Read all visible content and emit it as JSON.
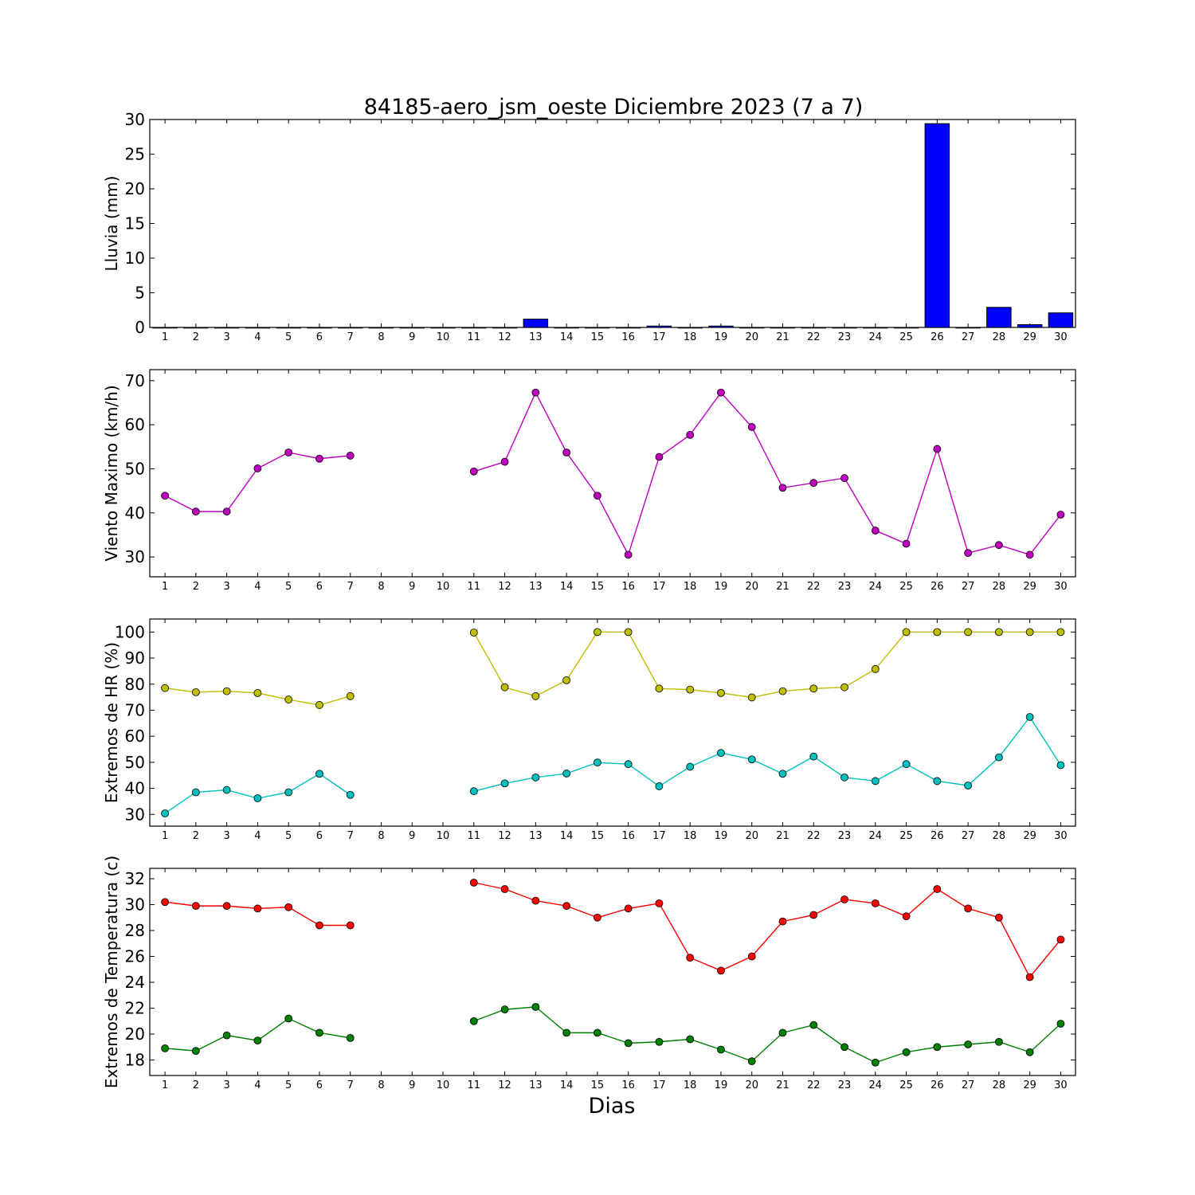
{
  "title": "84185-aero_jsm_oeste Diciembre 2023  (7 a 7)",
  "xlabel": "Dias",
  "colors": {
    "rain": "#0000ff",
    "wind": "#bf00bf",
    "hr_max": "#bfbf00",
    "hr_min": "#00bfbf",
    "temp_max": "#ff0000",
    "temp_min": "#008000"
  },
  "chart_data": [
    {
      "type": "bar",
      "ylabel": "Lluvia (mm)",
      "ylim": [
        0,
        30
      ],
      "yticks": [
        0,
        5,
        10,
        15,
        20,
        25,
        30
      ],
      "categories": [
        "1",
        "2",
        "3",
        "4",
        "5",
        "6",
        "7",
        "8",
        "9",
        "10",
        "11",
        "12",
        "13",
        "14",
        "15",
        "16",
        "17",
        "18",
        "19",
        "20",
        "21",
        "22",
        "23",
        "24",
        "25",
        "26",
        "27",
        "28",
        "29",
        "30"
      ],
      "values": [
        0,
        0,
        0,
        0,
        0,
        0,
        0,
        0,
        0,
        0,
        0,
        0,
        1.2,
        0,
        0,
        0,
        0.2,
        0,
        0.2,
        0,
        0,
        0,
        0,
        0,
        0,
        29.4,
        0,
        2.9,
        0.4,
        2.1
      ]
    },
    {
      "type": "line",
      "ylabel": "Viento Maximo (km/h)",
      "ylim": [
        25.5,
        72.5
      ],
      "yticks": [
        30,
        40,
        50,
        60,
        70
      ],
      "x": [
        "1",
        "2",
        "3",
        "4",
        "5",
        "6",
        "7",
        "8",
        "9",
        "10",
        "11",
        "12",
        "13",
        "14",
        "15",
        "16",
        "17",
        "18",
        "19",
        "20",
        "21",
        "22",
        "23",
        "24",
        "25",
        "26",
        "27",
        "28",
        "29",
        "30"
      ],
      "series": [
        {
          "color_key": "wind",
          "values": [
            43.9,
            40.3,
            40.3,
            50.1,
            53.7,
            52.3,
            53.0,
            null,
            null,
            null,
            49.4,
            51.6,
            67.3,
            53.7,
            43.9,
            30.5,
            52.7,
            57.7,
            67.3,
            59.5,
            45.7,
            46.8,
            47.9,
            36.0,
            33.0,
            54.5,
            30.9,
            32.7,
            30.5,
            39.6
          ]
        }
      ]
    },
    {
      "type": "line",
      "ylabel": "Extremos de HR (%)",
      "ylim": [
        25.5,
        105
      ],
      "yticks": [
        30,
        40,
        50,
        60,
        70,
        80,
        90,
        100
      ],
      "x": [
        "1",
        "2",
        "3",
        "4",
        "5",
        "6",
        "7",
        "8",
        "9",
        "10",
        "11",
        "12",
        "13",
        "14",
        "15",
        "16",
        "17",
        "18",
        "19",
        "20",
        "21",
        "22",
        "23",
        "24",
        "25",
        "26",
        "27",
        "28",
        "29",
        "30"
      ],
      "series": [
        {
          "color_key": "hr_max",
          "values": [
            78.5,
            76.9,
            77.3,
            76.6,
            74.1,
            72.0,
            75.4,
            null,
            null,
            null,
            99.8,
            78.8,
            75.4,
            81.5,
            100,
            100,
            78.3,
            77.9,
            76.6,
            74.9,
            77.3,
            78.3,
            78.8,
            85.8,
            100,
            100,
            100,
            100,
            100,
            100
          ]
        },
        {
          "color_key": "hr_min",
          "values": [
            30.4,
            38.5,
            39.4,
            36.2,
            38.5,
            45.6,
            37.5,
            null,
            null,
            null,
            38.9,
            41.9,
            44.2,
            45.7,
            49.9,
            49.3,
            40.8,
            48.3,
            53.6,
            51.1,
            45.6,
            52.2,
            44.2,
            42.8,
            49.3,
            42.8,
            41.1,
            51.9,
            67.4,
            48.9
          ]
        }
      ]
    },
    {
      "type": "line",
      "ylabel": "Extremos de Temperatura (c)",
      "ylim": [
        16.8,
        32.8
      ],
      "yticks": [
        18,
        20,
        22,
        24,
        26,
        28,
        30,
        32
      ],
      "x": [
        "1",
        "2",
        "3",
        "4",
        "5",
        "6",
        "7",
        "8",
        "9",
        "10",
        "11",
        "12",
        "13",
        "14",
        "15",
        "16",
        "17",
        "18",
        "19",
        "20",
        "21",
        "22",
        "23",
        "24",
        "25",
        "26",
        "27",
        "28",
        "29",
        "30"
      ],
      "series": [
        {
          "color_key": "temp_max",
          "values": [
            30.2,
            29.9,
            29.9,
            29.7,
            29.8,
            28.4,
            28.4,
            null,
            null,
            null,
            31.7,
            31.2,
            30.3,
            29.9,
            29.0,
            29.7,
            30.1,
            25.9,
            24.9,
            26.0,
            28.7,
            29.2,
            30.4,
            30.1,
            29.1,
            31.2,
            29.7,
            29.0,
            24.4,
            27.3
          ]
        },
        {
          "color_key": "temp_min",
          "values": [
            18.9,
            18.7,
            19.9,
            19.5,
            21.2,
            20.1,
            19.7,
            null,
            null,
            null,
            21.0,
            21.9,
            22.1,
            20.1,
            20.1,
            19.3,
            19.4,
            19.6,
            18.8,
            17.9,
            20.1,
            20.7,
            19.0,
            17.8,
            18.6,
            19.0,
            19.2,
            19.4,
            18.6,
            20.8
          ]
        }
      ]
    }
  ]
}
